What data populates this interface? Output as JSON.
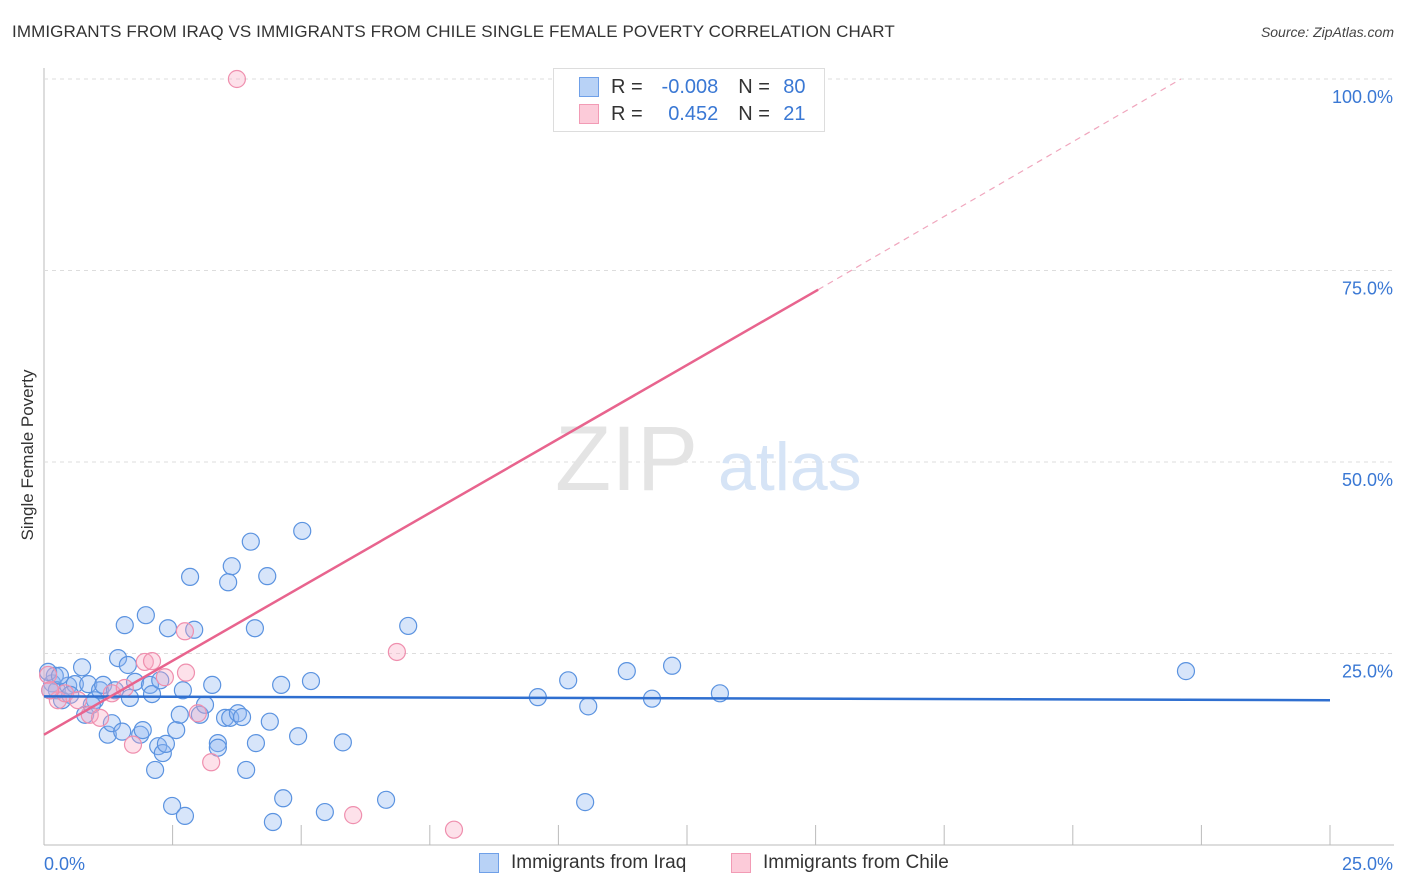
{
  "chart_data": {
    "type": "scatter",
    "title": "IMMIGRANTS FROM IRAQ VS IMMIGRANTS FROM CHILE SINGLE FEMALE POVERTY CORRELATION CHART",
    "source": "Source: ZipAtlas.com",
    "ylabel": "Single Female Poverty",
    "xlim": [
      0,
      25
    ],
    "ylim": [
      0,
      100
    ],
    "x_tick_labels": [
      "0.0%",
      "25.0%"
    ],
    "y_ticks": [
      25,
      50,
      75,
      100
    ],
    "y_tick_labels": [
      "25.0%",
      "50.0%",
      "75.0%",
      "100.0%"
    ],
    "grid": true,
    "legend_placement": "top-center",
    "colors": {
      "iraq": "#6fa0e8",
      "chile": "#f29bb5",
      "iraq_line": "#2f6fd0",
      "chile_line": "#e8648e"
    },
    "series": [
      {
        "name": "Immigrants from Iraq",
        "r_label": "R =",
        "r_value": "-0.008",
        "n_label": "N =",
        "n_value": "80",
        "trend": [
          [
            0,
            19.4
          ],
          [
            25,
            18.9
          ]
        ],
        "points": [
          [
            0.16,
            21.1
          ],
          [
            0.21,
            22.1
          ],
          [
            0.25,
            20.2
          ],
          [
            0.35,
            18.9
          ],
          [
            0.47,
            20.8
          ],
          [
            0.6,
            21.0
          ],
          [
            0.74,
            23.2
          ],
          [
            0.86,
            21.0
          ],
          [
            0.8,
            17.0
          ],
          [
            0.99,
            18.9
          ],
          [
            1.09,
            20.2
          ],
          [
            1.15,
            20.9
          ],
          [
            1.24,
            14.4
          ],
          [
            1.32,
            15.9
          ],
          [
            1.44,
            24.4
          ],
          [
            1.52,
            14.8
          ],
          [
            1.57,
            28.7
          ],
          [
            1.63,
            23.5
          ],
          [
            1.67,
            19.2
          ],
          [
            1.77,
            21.3
          ],
          [
            1.87,
            14.4
          ],
          [
            1.92,
            15.0
          ],
          [
            1.98,
            30.0
          ],
          [
            2.06,
            20.9
          ],
          [
            2.1,
            19.7
          ],
          [
            2.16,
            9.8
          ],
          [
            2.22,
            12.9
          ],
          [
            2.31,
            12.0
          ],
          [
            2.37,
            13.2
          ],
          [
            2.41,
            28.3
          ],
          [
            2.49,
            5.1
          ],
          [
            2.57,
            15.0
          ],
          [
            2.64,
            17.0
          ],
          [
            2.7,
            20.2
          ],
          [
            2.74,
            3.8
          ],
          [
            2.84,
            35.0
          ],
          [
            2.92,
            28.1
          ],
          [
            3.03,
            17.0
          ],
          [
            3.13,
            18.3
          ],
          [
            3.27,
            20.9
          ],
          [
            3.38,
            13.3
          ],
          [
            3.38,
            12.7
          ],
          [
            3.52,
            16.6
          ],
          [
            3.58,
            34.3
          ],
          [
            3.62,
            16.6
          ],
          [
            3.65,
            36.4
          ],
          [
            3.77,
            17.2
          ],
          [
            3.85,
            16.7
          ],
          [
            3.93,
            9.8
          ],
          [
            4.02,
            39.6
          ],
          [
            4.1,
            28.3
          ],
          [
            4.12,
            13.3
          ],
          [
            4.34,
            35.1
          ],
          [
            4.39,
            16.1
          ],
          [
            4.45,
            3.0
          ],
          [
            4.61,
            20.9
          ],
          [
            4.65,
            6.1
          ],
          [
            4.94,
            14.2
          ],
          [
            5.02,
            41.0
          ],
          [
            5.19,
            21.4
          ],
          [
            5.46,
            4.3
          ],
          [
            5.81,
            13.4
          ],
          [
            6.65,
            5.9
          ],
          [
            7.08,
            28.6
          ],
          [
            9.6,
            19.3
          ],
          [
            10.19,
            21.5
          ],
          [
            10.52,
            5.6
          ],
          [
            10.58,
            18.1
          ],
          [
            11.33,
            22.7
          ],
          [
            11.82,
            19.1
          ],
          [
            12.21,
            23.4
          ],
          [
            13.14,
            19.8
          ],
          [
            22.2,
            22.7
          ],
          [
            0.08,
            22.6
          ],
          [
            0.12,
            20.2
          ],
          [
            0.31,
            22.1
          ],
          [
            0.51,
            19.6
          ],
          [
            0.93,
            18.3
          ],
          [
            1.38,
            20.2
          ],
          [
            2.26,
            21.5
          ]
        ]
      },
      {
        "name": "Immigrants from Chile",
        "r_label": "R =",
        "r_value": "0.452",
        "n_label": "N =",
        "n_value": "21",
        "trend": [
          [
            0,
            14.4
          ],
          [
            15.05,
            72.5
          ]
        ],
        "trend_extension": [
          [
            15.05,
            72.5
          ],
          [
            22.1,
            100
          ]
        ],
        "points": [
          [
            3.75,
            100
          ],
          [
            0.08,
            22.2
          ],
          [
            0.27,
            18.9
          ],
          [
            0.41,
            19.8
          ],
          [
            0.66,
            18.9
          ],
          [
            0.89,
            17.0
          ],
          [
            1.09,
            16.6
          ],
          [
            1.32,
            19.8
          ],
          [
            1.57,
            20.5
          ],
          [
            1.73,
            13.1
          ],
          [
            1.96,
            23.9
          ],
          [
            2.1,
            24.0
          ],
          [
            2.35,
            21.9
          ],
          [
            2.74,
            27.9
          ],
          [
            2.76,
            22.5
          ],
          [
            2.99,
            17.2
          ],
          [
            3.25,
            10.8
          ],
          [
            6.01,
            3.9
          ],
          [
            6.86,
            25.2
          ],
          [
            7.97,
            2.0
          ],
          [
            0.12,
            20.2
          ]
        ]
      }
    ],
    "watermark": "ZIPatlas"
  }
}
